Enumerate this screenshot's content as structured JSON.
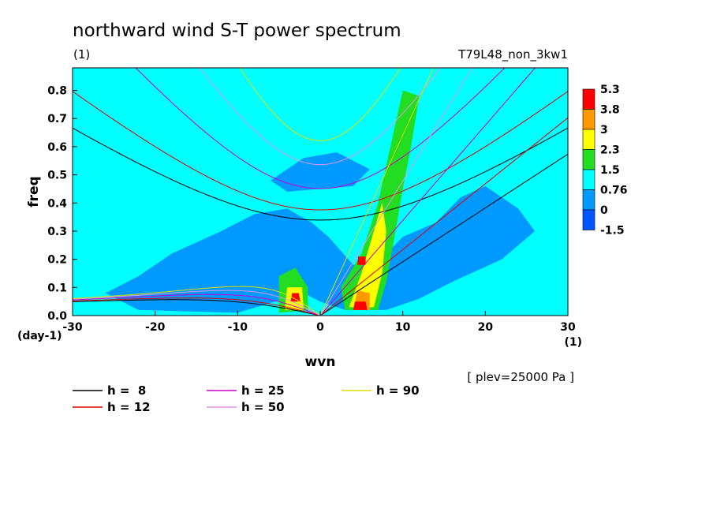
{
  "title": "northward wind S-T power spectrum",
  "left_unit_label": "(1)",
  "experiment": "T79L48_non_3kw1",
  "level_note": "[ plev=25000 Pa ]",
  "chart_data": {
    "type": "heatmap",
    "title": "northward wind S-T power spectrum",
    "xlabel": "wvn",
    "ylabel": "freq",
    "x_unit": "(1)",
    "y_unit": "(day-1)",
    "xlim": [
      -30,
      30
    ],
    "ylim": [
      0,
      0.88
    ],
    "x_ticks": [
      "-30",
      "-20",
      "-10",
      "0",
      "10",
      "20",
      "30"
    ],
    "x_tick_values": [
      -30,
      -20,
      -10,
      0,
      10,
      20,
      30
    ],
    "y_ticks": [
      "0.0",
      "0.1",
      "0.2",
      "0.3",
      "0.4",
      "0.5",
      "0.6",
      "0.7",
      "0.8"
    ],
    "y_tick_values": [
      0,
      0.1,
      0.2,
      0.3,
      0.4,
      0.5,
      0.6,
      0.7,
      0.8
    ],
    "colorbar": {
      "labels": [
        "5.3",
        "3.8",
        "3",
        "2.3",
        "1.5",
        "0.76",
        "0",
        "-1.5"
      ],
      "colors": [
        "#ff0000",
        "#ff9900",
        "#ffff00",
        "#22dd22",
        "#00ffff",
        "#0099ff",
        "#0055ff"
      ]
    },
    "background_color": "#00ffff",
    "contour_regions": [
      {
        "level": "0-0.76",
        "color": "#0099ff",
        "kind": "broad low-power region",
        "polygon": [
          [
            -22,
            0.02
          ],
          [
            -10,
            0.01
          ],
          [
            -2,
            0.08
          ],
          [
            0,
            0.05
          ],
          [
            3,
            0.02
          ],
          [
            8,
            0.02
          ],
          [
            12,
            0.06
          ],
          [
            16,
            0.12
          ],
          [
            22,
            0.2
          ],
          [
            26,
            0.3
          ],
          [
            24,
            0.38
          ],
          [
            20,
            0.46
          ],
          [
            17,
            0.42
          ],
          [
            14,
            0.33
          ],
          [
            10,
            0.28
          ],
          [
            8,
            0.22
          ],
          [
            4,
            0.18
          ],
          [
            1,
            0.28
          ],
          [
            -1,
            0.33
          ],
          [
            -4,
            0.38
          ],
          [
            -8,
            0.36
          ],
          [
            -12,
            0.3
          ],
          [
            -18,
            0.22
          ],
          [
            -22,
            0.14
          ],
          [
            -26,
            0.08
          ]
        ]
      },
      {
        "level": "0-0.76",
        "color": "#0099ff",
        "kind": "upper patch",
        "polygon": [
          [
            -6,
            0.48
          ],
          [
            -2,
            0.56
          ],
          [
            2,
            0.58
          ],
          [
            6,
            0.52
          ],
          [
            4,
            0.46
          ],
          [
            0,
            0.45
          ],
          [
            -4,
            0.44
          ]
        ]
      },
      {
        "level": "1.5-2.3",
        "color": "#22dd22",
        "kind": "eastward ridge",
        "polygon": [
          [
            3,
            0.02
          ],
          [
            7,
            0.02
          ],
          [
            8,
            0.12
          ],
          [
            9,
            0.28
          ],
          [
            10,
            0.45
          ],
          [
            11,
            0.6
          ],
          [
            12,
            0.78
          ],
          [
            10,
            0.8
          ],
          [
            8.5,
            0.6
          ],
          [
            7,
            0.4
          ],
          [
            5,
            0.22
          ],
          [
            2.5,
            0.1
          ]
        ]
      },
      {
        "level": "1.5-2.3",
        "color": "#22dd22",
        "kind": "westward blob",
        "polygon": [
          [
            -5,
            0.01
          ],
          [
            -1.5,
            0.02
          ],
          [
            -1.5,
            0.1
          ],
          [
            -3,
            0.17
          ],
          [
            -5,
            0.14
          ]
        ]
      },
      {
        "level": "2.3-3",
        "color": "#ffff00",
        "kind": "ridge core",
        "polygon": [
          [
            3.5,
            0.03
          ],
          [
            6.5,
            0.03
          ],
          [
            7.5,
            0.15
          ],
          [
            8,
            0.3
          ],
          [
            7.5,
            0.4
          ],
          [
            6.5,
            0.3
          ],
          [
            5,
            0.15
          ]
        ]
      },
      {
        "level": "2.3-3",
        "color": "#ffff00",
        "kind": "westward core",
        "polygon": [
          [
            -4.3,
            0.02
          ],
          [
            -2,
            0.02
          ],
          [
            -2.2,
            0.1
          ],
          [
            -4,
            0.1
          ]
        ]
      },
      {
        "level": "3-3.8",
        "color": "#ff9900",
        "kind": "ridge peaks",
        "polygon": [
          [
            4,
            0.02
          ],
          [
            6,
            0.02
          ],
          [
            6,
            0.08
          ],
          [
            4.5,
            0.09
          ]
        ]
      },
      {
        "level": "3.8-5.3",
        "color": "#ff0000",
        "kind": "eastward maximum",
        "polygon": [
          [
            4,
            0.02
          ],
          [
            5.7,
            0.02
          ],
          [
            5.5,
            0.05
          ],
          [
            4.2,
            0.05
          ]
        ]
      },
      {
        "level": "3.8-5.3",
        "color": "#ff0000",
        "kind": "westward maximum",
        "polygon": [
          [
            -3.6,
            0.05
          ],
          [
            -2.4,
            0.05
          ],
          [
            -2.6,
            0.08
          ],
          [
            -3.4,
            0.08
          ]
        ]
      },
      {
        "level": "3.8-5.3",
        "color": "#ff0000",
        "kind": "ridge peak",
        "polygon": [
          [
            4.5,
            0.18
          ],
          [
            5.5,
            0.18
          ],
          [
            5.5,
            0.21
          ],
          [
            4.6,
            0.21
          ]
        ]
      }
    ],
    "dispersion_curves": [
      {
        "h": 8,
        "color": "#000000"
      },
      {
        "h": 12,
        "color": "#dd0000"
      },
      {
        "h": 25,
        "color": "#cc00cc"
      },
      {
        "h": 50,
        "color": "#dd99dd"
      },
      {
        "h": 90,
        "color": "#dddd00"
      }
    ],
    "legend": {
      "placement": "bottom-left",
      "entries": [
        {
          "label": "h =  8",
          "color": "#000000"
        },
        {
          "label": "h = 12",
          "color": "#dd0000"
        },
        {
          "label": "h = 25",
          "color": "#cc00cc"
        },
        {
          "label": "h = 50",
          "color": "#dd99dd"
        },
        {
          "label": "h = 90",
          "color": "#dddd00"
        }
      ]
    }
  }
}
